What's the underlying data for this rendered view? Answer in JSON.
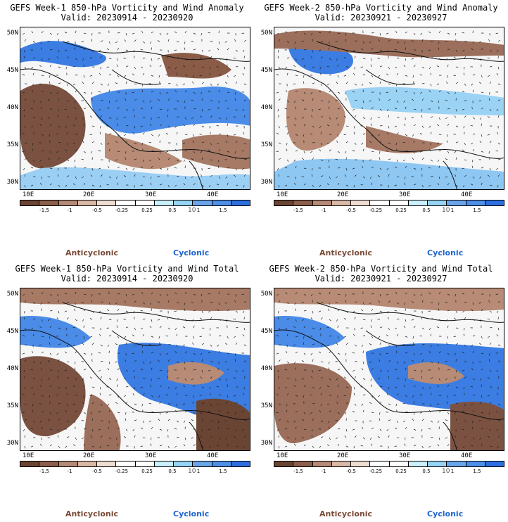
{
  "panels": [
    {
      "title_line1": "GEFS Week-1 850-hPa Vorticity and Wind Anomaly",
      "title_line2": "Valid: 20230914 - 20230920"
    },
    {
      "title_line1": "GEFS Week-2 850-hPa Vorticity and Wind Anomaly",
      "title_line2": "Valid: 20230921 - 20230927"
    },
    {
      "title_line1": "GEFS Week-1 850-hPa Vorticity and Wind Total",
      "title_line2": "Valid: 20230914 - 20230920"
    },
    {
      "title_line1": "GEFS Week-2 850-hPa Vorticity and Wind Total",
      "title_line2": "Valid: 20230921 - 20230927"
    }
  ],
  "map": {
    "lat_labels": [
      "50N",
      "45N",
      "40N",
      "35N",
      "30N"
    ],
    "lon_labels": [
      "10E",
      "20E",
      "30E",
      "40E"
    ]
  },
  "colorbar": {
    "labels": [
      "-1.5",
      "-1",
      "-0.5",
      "-0.25",
      "0.25",
      "0.5",
      "1",
      "1.5"
    ],
    "unit": "10",
    "colors": [
      "#6b4534",
      "#8c5f4b",
      "#b58a76",
      "#d9b8a6",
      "#f0ddd2",
      "#ffffff",
      "#ffffff",
      "#c9f0fb",
      "#96d4f5",
      "#6aa5ea",
      "#4f8fe8",
      "#2e6fe0"
    ]
  },
  "legend": {
    "anticyclonic": "Anticyclonic",
    "cyclonic": "Cyclonic",
    "anticyclonic_color": "#7a4a37",
    "cyclonic_color": "#1f66d1"
  }
}
